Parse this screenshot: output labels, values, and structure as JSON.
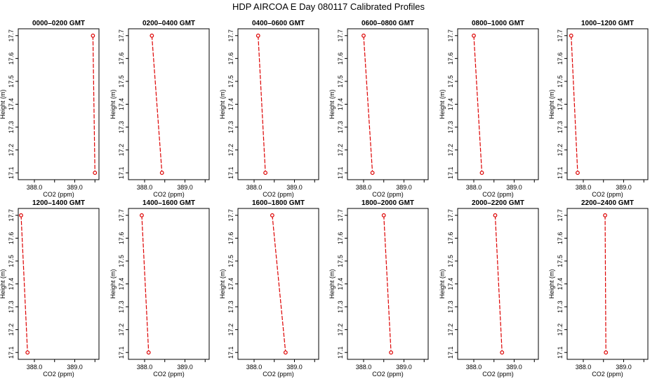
{
  "title": "HDP AIRCOA E  Day 080117  Calibrated Profiles",
  "chart_data": {
    "type": "line",
    "xlabel": "CO2 (ppm)",
    "ylabel": "Height (m)",
    "xlim": [
      387.6,
      389.6
    ],
    "ylim": [
      17.07,
      17.73
    ],
    "xticks": [
      "388.0",
      "389.0"
    ],
    "yticks": [
      "17.1",
      "17.2",
      "17.3",
      "17.4",
      "17.5",
      "17.6",
      "17.7"
    ],
    "series_color": "#dd0000",
    "panels": [
      {
        "title": "0000–0200 GMT",
        "points": [
          {
            "x": 389.45,
            "y": 17.7
          },
          {
            "x": 389.5,
            "y": 17.1
          }
        ]
      },
      {
        "title": "0200–0400 GMT",
        "points": [
          {
            "x": 388.18,
            "y": 17.7
          },
          {
            "x": 388.43,
            "y": 17.1
          }
        ]
      },
      {
        "title": "0400–0600 GMT",
        "points": [
          {
            "x": 388.1,
            "y": 17.7
          },
          {
            "x": 388.28,
            "y": 17.1
          }
        ]
      },
      {
        "title": "0600–0800 GMT",
        "points": [
          {
            "x": 388.0,
            "y": 17.7
          },
          {
            "x": 388.22,
            "y": 17.1
          }
        ]
      },
      {
        "title": "0800–1000 GMT",
        "points": [
          {
            "x": 388.0,
            "y": 17.7
          },
          {
            "x": 388.2,
            "y": 17.1
          }
        ]
      },
      {
        "title": "1000–1200 GMT",
        "points": [
          {
            "x": 387.7,
            "y": 17.7
          },
          {
            "x": 387.86,
            "y": 17.1
          }
        ]
      },
      {
        "title": "1200–1400 GMT",
        "points": [
          {
            "x": 387.67,
            "y": 17.7
          },
          {
            "x": 387.83,
            "y": 17.1
          }
        ]
      },
      {
        "title": "1400–1600 GMT",
        "points": [
          {
            "x": 387.93,
            "y": 17.7
          },
          {
            "x": 388.1,
            "y": 17.1
          }
        ]
      },
      {
        "title": "1600–1800 GMT",
        "points": [
          {
            "x": 388.45,
            "y": 17.7
          },
          {
            "x": 388.78,
            "y": 17.1
          }
        ]
      },
      {
        "title": "1800–2000 GMT",
        "points": [
          {
            "x": 388.5,
            "y": 17.7
          },
          {
            "x": 388.68,
            "y": 17.1
          }
        ]
      },
      {
        "title": "2000–2200 GMT",
        "points": [
          {
            "x": 388.53,
            "y": 17.7
          },
          {
            "x": 388.7,
            "y": 17.1
          }
        ]
      },
      {
        "title": "2200–2400 GMT",
        "points": [
          {
            "x": 388.54,
            "y": 17.7
          },
          {
            "x": 388.56,
            "y": 17.1
          }
        ]
      }
    ]
  }
}
